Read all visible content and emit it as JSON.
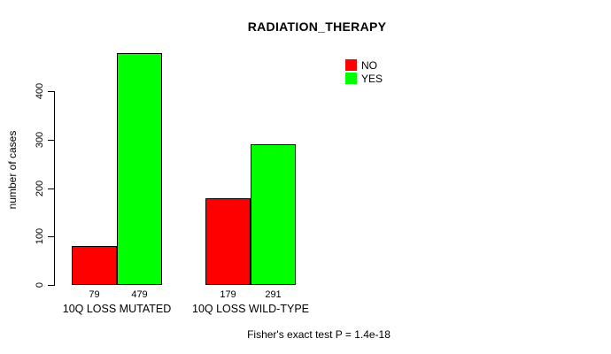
{
  "chart_data": {
    "type": "bar",
    "title": "RADIATION_THERAPY",
    "categories": [
      "10Q LOSS MUTATED",
      "10Q LOSS WILD-TYPE"
    ],
    "series": [
      {
        "name": "NO",
        "color": "#ff0000",
        "values": [
          79,
          179
        ]
      },
      {
        "name": "YES",
        "color": "#00ff00",
        "values": [
          479,
          291
        ]
      }
    ],
    "ylabel": "number of cases",
    "xlabel": "",
    "yticks": [
      0,
      100,
      200,
      300,
      400
    ],
    "ylim": [
      0,
      500
    ],
    "grid": false,
    "legend_position": "top-right",
    "annotation": "Fisher's exact test P = 1.4e-18"
  }
}
